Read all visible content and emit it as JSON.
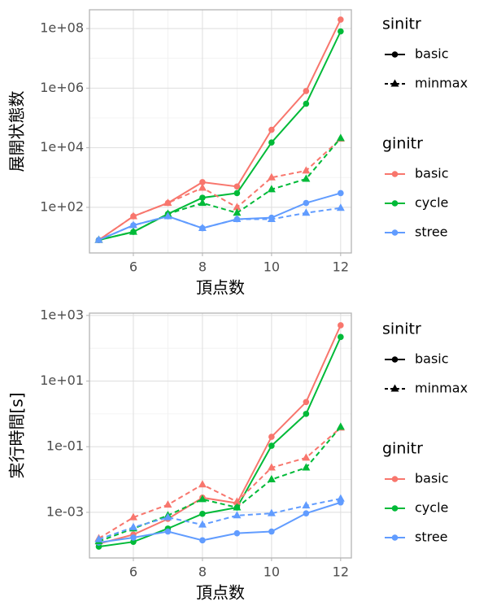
{
  "chart_data": [
    {
      "type": "line",
      "y_label": "展開状態数",
      "x_label": "頂点数",
      "log_y": true,
      "grid": true,
      "x": [
        5,
        6,
        7,
        8,
        9,
        10,
        11,
        12
      ],
      "xlim": [
        4.73,
        12.31
      ],
      "xticks": [
        6,
        8,
        10,
        12
      ],
      "ylim": [
        2.95,
        426000000
      ],
      "yticks": [
        {
          "value": 100,
          "label": "1e+02"
        },
        {
          "value": 10000,
          "label": "1e+04"
        },
        {
          "value": 1000000,
          "label": "1e+06"
        },
        {
          "value": 100000000,
          "label": "1e+08"
        }
      ],
      "series": [
        {
          "color": "#F8766D",
          "linestyle": "solid",
          "marker": "circle",
          "values": [
            8,
            50,
            140,
            700,
            500,
            40000,
            800000,
            200000000
          ]
        },
        {
          "color": "#00BA38",
          "linestyle": "solid",
          "marker": "circle",
          "values": [
            8,
            15,
            60,
            210,
            300,
            15000,
            300000,
            80000000
          ]
        },
        {
          "color": "#619CFF",
          "linestyle": "solid",
          "marker": "circle",
          "values": [
            8,
            25,
            50,
            20,
            40,
            45,
            140,
            300
          ]
        },
        {
          "color": "#F8766D",
          "linestyle": "dashed",
          "marker": "triangle",
          "values": [
            8,
            50,
            140,
            450,
            100,
            1000,
            1700,
            20000
          ]
        },
        {
          "color": "#00BA38",
          "linestyle": "dashed",
          "marker": "triangle",
          "values": [
            8,
            15,
            60,
            140,
            65,
            400,
            900,
            21000
          ]
        },
        {
          "color": "#619CFF",
          "linestyle": "dashed",
          "marker": "triangle",
          "values": [
            8,
            25,
            50,
            20,
            40,
            40,
            65,
            95
          ]
        }
      ],
      "legends": [
        {
          "title": "sinitr",
          "entries": [
            {
              "label": "basic",
              "linestyle": "solid",
              "marker": "circle"
            },
            {
              "label": "minmax",
              "linestyle": "dashed",
              "marker": "triangle"
            }
          ]
        },
        {
          "title": "ginitr",
          "entries": [
            {
              "label": "basic",
              "color": "#F8766D"
            },
            {
              "label": "cycle",
              "color": "#00BA38"
            },
            {
              "label": "stree",
              "color": "#619CFF"
            }
          ]
        }
      ]
    },
    {
      "type": "line",
      "y_label": "実行時間[s]",
      "x_label": "頂点数",
      "log_y": true,
      "grid": true,
      "x": [
        5,
        6,
        7,
        8,
        9,
        10,
        11,
        12
      ],
      "xlim": [
        4.73,
        12.31
      ],
      "xticks": [
        6,
        8,
        10,
        12
      ],
      "ylim": [
        4.07e-05,
        1175
      ],
      "yticks": [
        {
          "value": 0.001,
          "label": "1e-03"
        },
        {
          "value": 0.1,
          "label": "1e-01"
        },
        {
          "value": 10,
          "label": "1e+01"
        },
        {
          "value": 1000,
          "label": "1e+03"
        }
      ],
      "series": [
        {
          "color": "#F8766D",
          "linestyle": "solid",
          "marker": "circle",
          "values": [
            0.00011,
            0.00021,
            0.00063,
            0.0028,
            0.0019,
            0.2,
            2.3,
            500
          ]
        },
        {
          "color": "#00BA38",
          "linestyle": "solid",
          "marker": "circle",
          "values": [
            9e-05,
            0.000126,
            0.00032,
            0.0009,
            0.0014,
            0.107,
            1,
            220
          ]
        },
        {
          "color": "#619CFF",
          "linestyle": "solid",
          "marker": "circle",
          "values": [
            0.00012,
            0.00017,
            0.00026,
            0.00014,
            0.00023,
            0.00026,
            0.00093,
            0.002
          ]
        },
        {
          "color": "#F8766D",
          "linestyle": "dashed",
          "marker": "triangle",
          "values": [
            0.00016,
            0.0007,
            0.0017,
            0.007,
            0.0021,
            0.023,
            0.046,
            0.38
          ]
        },
        {
          "color": "#00BA38",
          "linestyle": "dashed",
          "marker": "triangle",
          "values": [
            0.00013,
            0.00032,
            0.0008,
            0.0025,
            0.0014,
            0.01,
            0.023,
            0.4
          ]
        },
        {
          "color": "#619CFF",
          "linestyle": "dashed",
          "marker": "triangle",
          "values": [
            0.00015,
            0.00035,
            0.0007,
            0.00042,
            0.0008,
            0.00093,
            0.0016,
            0.0026
          ]
        }
      ],
      "legends": [
        {
          "title": "sinitr",
          "entries": [
            {
              "label": "basic",
              "linestyle": "solid",
              "marker": "circle"
            },
            {
              "label": "minmax",
              "linestyle": "dashed",
              "marker": "triangle"
            }
          ]
        },
        {
          "title": "ginitr",
          "entries": [
            {
              "label": "basic",
              "color": "#F8766D"
            },
            {
              "label": "cycle",
              "color": "#00BA38"
            },
            {
              "label": "stree",
              "color": "#619CFF"
            }
          ]
        }
      ]
    }
  ]
}
